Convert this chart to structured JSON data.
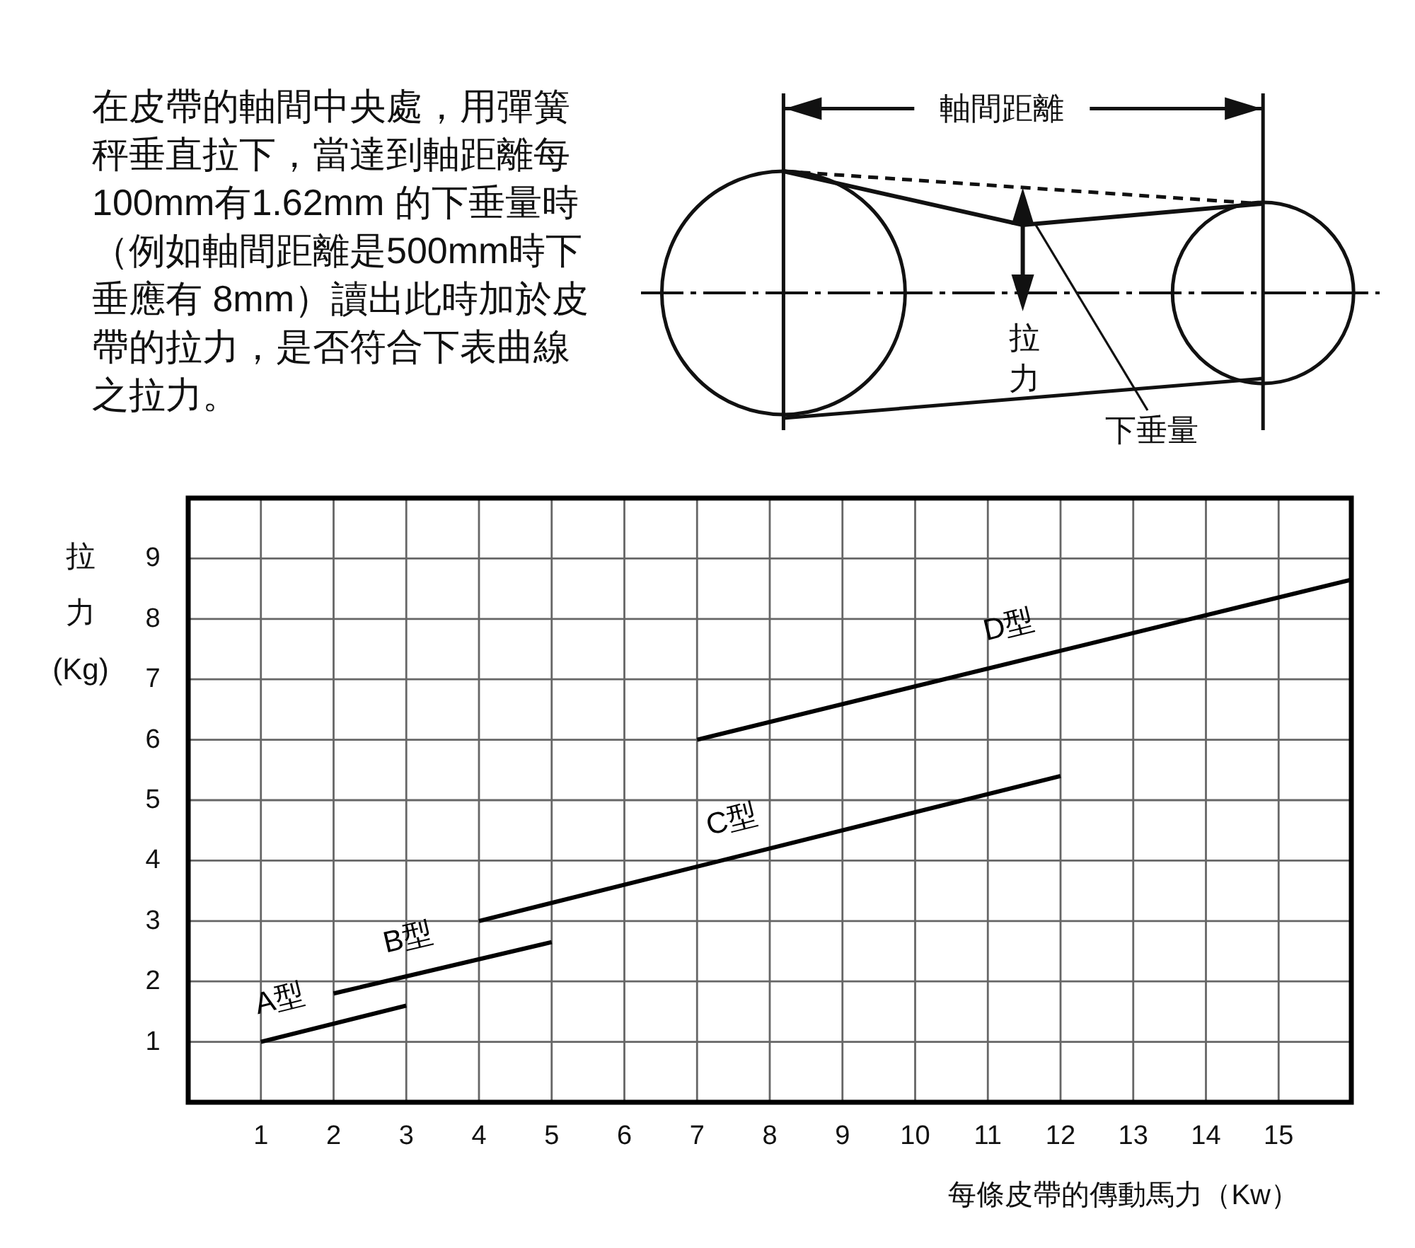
{
  "chart_data": {
    "type": "line",
    "xlabel": "每條皮帶的傳動馬力（Kw）",
    "ylabel": "拉力(Kg)",
    "annotations": [
      "在皮帶的軸間中央處，用彈簧秤垂直拉下，當達到軸距離每100mm有1.62mm 的下垂量時（例如軸間距離是500mm時下垂應有 8mm）讀出此時加於皮帶的拉力，是否符合下表曲線之拉力。",
      "軸間距離",
      "拉力",
      "下垂量"
    ],
    "xlim": [
      0,
      16
    ],
    "ylim": [
      0,
      10
    ],
    "xticks": [
      1,
      2,
      3,
      4,
      5,
      6,
      7,
      8,
      9,
      10,
      11,
      12,
      13,
      14,
      15
    ],
    "yticks": [
      1,
      2,
      3,
      4,
      5,
      6,
      7,
      8,
      9
    ],
    "grid": true,
    "series": [
      {
        "name": "A型",
        "color": "#000000",
        "x": [
          1,
          3
        ],
        "values": [
          1.0,
          1.6
        ]
      },
      {
        "name": "B型",
        "color": "#000000",
        "x": [
          2,
          5
        ],
        "values": [
          1.8,
          2.65
        ]
      },
      {
        "name": "C型",
        "color": "#000000",
        "x": [
          4,
          12
        ],
        "values": [
          3.0,
          5.4
        ]
      },
      {
        "name": "D型",
        "color": "#000000",
        "x": [
          7,
          16
        ],
        "values": [
          6.0,
          8.65
        ]
      }
    ]
  }
}
